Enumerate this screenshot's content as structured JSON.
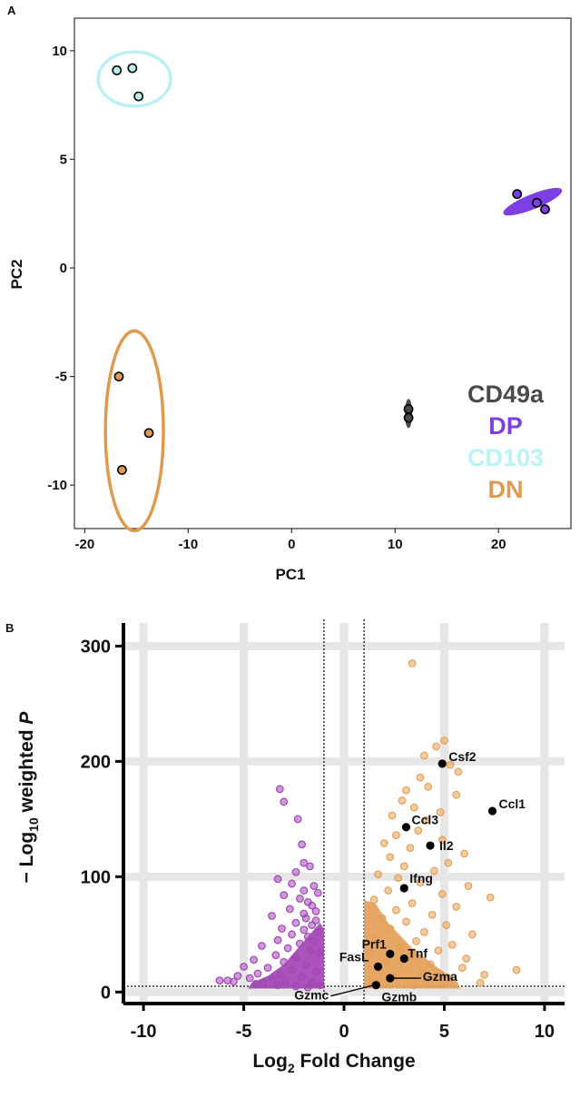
{
  "chart_data": [
    {
      "panel_label": "A",
      "type": "scatter",
      "xlabel": "PC1",
      "ylabel": "PC2",
      "xlim": [
        -21,
        27
      ],
      "ylim": [
        -12,
        11.5
      ],
      "xticks": [
        -20,
        -10,
        0,
        10,
        20
      ],
      "yticks": [
        10,
        5,
        0,
        -5,
        -10
      ],
      "grid": false,
      "legend_position": "lower-right",
      "series": [
        {
          "name": "CD49a",
          "color": "#4a4a4a",
          "points": [
            [
              11.3,
              -6.5
            ],
            [
              11.3,
              -6.9
            ]
          ]
        },
        {
          "name": "DP",
          "color": "#7b3fe4",
          "points": [
            [
              21.8,
              3.4
            ],
            [
              23.7,
              3.0
            ],
            [
              24.5,
              2.7
            ]
          ]
        },
        {
          "name": "CD103",
          "color": "#b8f0f4",
          "points": [
            [
              -16.9,
              9.1
            ],
            [
              -15.4,
              9.2
            ],
            [
              -14.8,
              7.9
            ]
          ]
        },
        {
          "name": "DN",
          "color": "#e09a4e",
          "points": [
            [
              -16.7,
              -5.0
            ],
            [
              -16.4,
              -9.3
            ],
            [
              -13.8,
              -7.6
            ]
          ]
        }
      ],
      "ellipses": [
        {
          "series": "CD103",
          "cx": -15.2,
          "cy": 8.7,
          "rx": 3.5,
          "ry": 1.25,
          "rotation": 0
        },
        {
          "series": "DP",
          "cx": 23.3,
          "cy": 3.05,
          "rx": 3.0,
          "ry": 0.32,
          "rotation": -22
        },
        {
          "series": "CD49a",
          "cx": 11.3,
          "cy": -6.7,
          "rx": 0.3,
          "ry": 0.65,
          "rotation": 0
        },
        {
          "series": "DN",
          "cx": -15.2,
          "cy": -7.5,
          "rx": 2.8,
          "ry": 4.6,
          "rotation": 0
        }
      ]
    },
    {
      "panel_label": "B",
      "type": "scatter",
      "xlabel_main": "Log",
      "xlabel_sub": "2",
      "xlabel_rest": " Fold Change",
      "ylabel_prefix": "− Log",
      "ylabel_sub": "10",
      "ylabel_mid": " weighted ",
      "ylabel_italic": "P",
      "xlim": [
        -11,
        11
      ],
      "ylim": [
        -10,
        320
      ],
      "xticks": [
        -10,
        -5,
        0,
        5,
        10
      ],
      "yticks": [
        300,
        200,
        100,
        0
      ],
      "grid": true,
      "thresholds": {
        "x": [
          -1,
          1
        ],
        "y": [
          5
        ]
      },
      "labeled_genes": [
        {
          "gene": "Csf2",
          "x": 4.9,
          "y": 198
        },
        {
          "gene": "Ccl1",
          "x": 7.4,
          "y": 157
        },
        {
          "gene": "Ccl3",
          "x": 3.1,
          "y": 143
        },
        {
          "gene": "Il2",
          "x": 4.3,
          "y": 127
        },
        {
          "gene": "Ifng",
          "x": 3.0,
          "y": 90
        },
        {
          "gene": "Prf1",
          "x": 2.3,
          "y": 33
        },
        {
          "gene": "Tnf",
          "x": 3.0,
          "y": 29
        },
        {
          "gene": "FasL",
          "x": 1.7,
          "y": 22
        },
        {
          "gene": "Gzma",
          "x": 2.3,
          "y": 12
        },
        {
          "gene": "Gzmb",
          "x": 1.6,
          "y": 6
        },
        {
          "gene": "Gzmc",
          "x": 1.6,
          "y": 6
        }
      ],
      "series": [
        {
          "color": "#a347b5",
          "points": [
            [
              -3.2,
              176
            ],
            [
              -3.0,
              165
            ],
            [
              -2.3,
              150
            ],
            [
              -2.1,
              128
            ],
            [
              -2.0,
              112
            ],
            [
              -1.7,
              109
            ],
            [
              -2.4,
              104
            ],
            [
              -3.3,
              98
            ],
            [
              -2.6,
              94
            ],
            [
              -1.5,
              92
            ],
            [
              -2.0,
              88
            ],
            [
              -1.3,
              86
            ],
            [
              -3.0,
              84
            ],
            [
              -2.2,
              81
            ],
            [
              -1.8,
              78
            ],
            [
              -1.6,
              75
            ],
            [
              -2.7,
              72
            ],
            [
              -1.4,
              70
            ],
            [
              -2.0,
              68
            ],
            [
              -3.6,
              66
            ],
            [
              -1.9,
              64
            ],
            [
              -1.4,
              62
            ],
            [
              -2.4,
              60
            ],
            [
              -1.6,
              58
            ],
            [
              -3.1,
              55
            ],
            [
              -2.0,
              54
            ],
            [
              -1.3,
              52
            ],
            [
              -2.6,
              50
            ],
            [
              -1.8,
              48
            ],
            [
              -3.3,
              45
            ],
            [
              -1.5,
              44
            ],
            [
              -2.2,
              42
            ],
            [
              -4.1,
              40
            ],
            [
              -2.8,
              38
            ],
            [
              -1.7,
              36
            ],
            [
              -1.2,
              34
            ],
            [
              -3.4,
              32
            ],
            [
              -2.4,
              30
            ],
            [
              -4.5,
              28
            ],
            [
              -3.0,
              26
            ],
            [
              -1.9,
              24
            ],
            [
              -5.0,
              22
            ],
            [
              -3.8,
              21
            ],
            [
              -2.6,
              19
            ],
            [
              -1.4,
              18
            ],
            [
              -4.3,
              16
            ],
            [
              -3.2,
              15
            ],
            [
              -5.3,
              14
            ],
            [
              -2.1,
              13
            ],
            [
              -4.7,
              12
            ],
            [
              -3.6,
              11
            ],
            [
              -6.2,
              10
            ],
            [
              -5.8,
              10
            ],
            [
              -2.9,
              9
            ],
            [
              -4.0,
              8
            ],
            [
              -1.6,
              8
            ],
            [
              -3.3,
              6
            ],
            [
              -2.4,
              5
            ],
            [
              -1.8,
              4
            ],
            [
              -1.2,
              6
            ],
            [
              -4.4,
              7
            ],
            [
              -5.5,
              9
            ]
          ]
        },
        {
          "color": "#e5a057",
          "points": [
            [
              3.4,
              285
            ],
            [
              5.0,
              218
            ],
            [
              4.6,
              213
            ],
            [
              4.0,
              205
            ],
            [
              5.3,
              197
            ],
            [
              5.7,
              191
            ],
            [
              3.8,
              186
            ],
            [
              4.2,
              178
            ],
            [
              3.1,
              175
            ],
            [
              5.6,
              171
            ],
            [
              2.9,
              166
            ],
            [
              3.5,
              160
            ],
            [
              4.8,
              156
            ],
            [
              2.4,
              153
            ],
            [
              4.1,
              149
            ],
            [
              3.7,
              140
            ],
            [
              2.6,
              136
            ],
            [
              4.9,
              132
            ],
            [
              2.0,
              129
            ],
            [
              3.3,
              125
            ],
            [
              6.0,
              120
            ],
            [
              2.3,
              117
            ],
            [
              5.2,
              112
            ],
            [
              3.0,
              109
            ],
            [
              4.5,
              105
            ],
            [
              1.7,
              102
            ],
            [
              2.7,
              99
            ],
            [
              3.8,
              95
            ],
            [
              6.2,
              92
            ],
            [
              2.2,
              88
            ],
            [
              4.9,
              85
            ],
            [
              7.3,
              82
            ],
            [
              1.5,
              80
            ],
            [
              3.4,
              77
            ],
            [
              5.6,
              74
            ],
            [
              2.6,
              71
            ],
            [
              4.4,
              67
            ],
            [
              1.9,
              64
            ],
            [
              3.1,
              61
            ],
            [
              5.1,
              58
            ],
            [
              2.3,
              55
            ],
            [
              4.0,
              52
            ],
            [
              6.4,
              50
            ],
            [
              1.6,
              47
            ],
            [
              3.6,
              44
            ],
            [
              5.4,
              41
            ],
            [
              2.8,
              39
            ],
            [
              4.7,
              36
            ],
            [
              1.3,
              34
            ],
            [
              3.3,
              31
            ],
            [
              6.1,
              29
            ],
            [
              2.1,
              26
            ],
            [
              4.3,
              24
            ],
            [
              5.9,
              21
            ],
            [
              1.8,
              19
            ],
            [
              3.9,
              17
            ],
            [
              7.0,
              15
            ],
            [
              2.5,
              13
            ],
            [
              8.6,
              19
            ],
            [
              5.2,
              12
            ],
            [
              4.1,
              9
            ],
            [
              6.8,
              8
            ],
            [
              3.5,
              6
            ],
            [
              1.4,
              10
            ]
          ]
        }
      ]
    }
  ]
}
